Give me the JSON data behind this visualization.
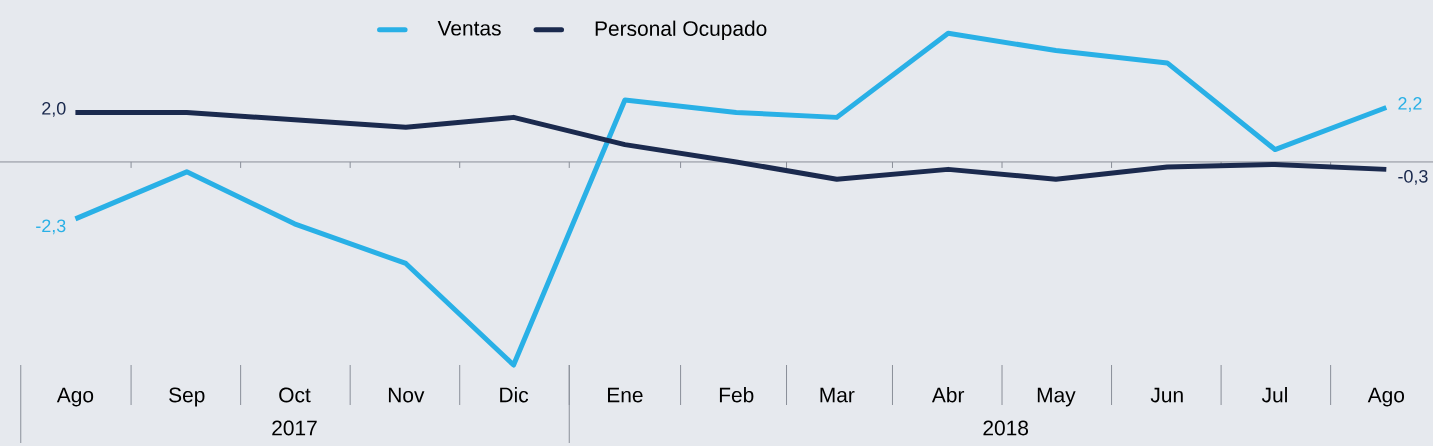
{
  "chart_data": {
    "type": "line",
    "x": [
      "2017-08",
      "2017-09",
      "2017-10",
      "2017-11",
      "2017-12",
      "2018-01",
      "2018-02",
      "2018-03",
      "2018-04",
      "2018-05",
      "2018-06",
      "2018-07",
      "2018-08"
    ],
    "xlim": [
      "2017-07-11",
      "2018-08-14"
    ],
    "xticks": [
      {
        "value": "2017-08",
        "label": "Ago"
      },
      {
        "value": "2017-09",
        "label": "Sep"
      },
      {
        "value": "2017-10",
        "label": "Oct"
      },
      {
        "value": "2017-11",
        "label": "Nov"
      },
      {
        "value": "2017-12",
        "label": "Dic"
      },
      {
        "value": "2018-01",
        "label": "Ene"
      },
      {
        "value": "2018-02",
        "label": "Feb"
      },
      {
        "value": "2018-03",
        "label": "Mar"
      },
      {
        "value": "2018-04",
        "label": "Abr"
      },
      {
        "value": "2018-05",
        "label": "May"
      },
      {
        "value": "2018-06",
        "label": "Jun"
      },
      {
        "value": "2018-07",
        "label": "Jul"
      },
      {
        "value": "2018-08",
        "label": "Ago"
      }
    ],
    "tick_labels": "x",
    "series": [
      {
        "name": "Ventas",
        "color": "#29b0e6",
        "values": [
          -2.3,
          -0.4,
          -2.5,
          -4.1,
          -8.2,
          2.5,
          2.0,
          1.8,
          5.2,
          4.5,
          4.0,
          0.5,
          2.2
        ],
        "value_labels": [
          "-2,3",
          null,
          null,
          null,
          null,
          null,
          null,
          null,
          null,
          null,
          null,
          null,
          "2,2"
        ]
      },
      {
        "name": "Personal Ocupado",
        "color": "#1b2a4e",
        "values": [
          2.0,
          2.0,
          1.7,
          1.4,
          1.8,
          0.7,
          0.0,
          -0.7,
          -0.3,
          -0.7,
          -0.2,
          -0.1,
          -0.3
        ],
        "value_labels": [
          "2,0",
          null,
          null,
          null,
          null,
          null,
          null,
          null,
          null,
          null,
          null,
          null,
          "-0,3"
        ]
      }
    ],
    "annotations": [
      "2017",
      "2018"
    ],
    "legend": "top",
    "marker": "none",
    "line_style": "solid",
    "grid": false
  }
}
